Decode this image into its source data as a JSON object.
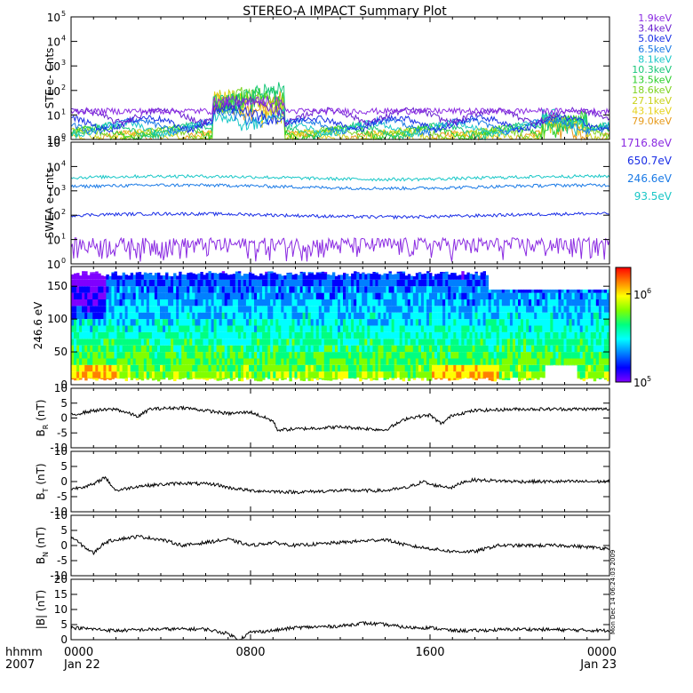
{
  "title": "STEREO-A IMPACT Summary Plot",
  "footer": {
    "time_label": "hhmm",
    "year_label": "2007",
    "x_ticks": [
      {
        "t": "0000",
        "d": "Jan 22",
        "hour": 0
      },
      {
        "t": "0800",
        "d": "",
        "hour": 8
      },
      {
        "t": "1600",
        "d": "",
        "hour": 16
      },
      {
        "t": "0000",
        "d": "Jan 23",
        "hour": 24
      }
    ],
    "stamp": "Mon Dec 14 06:24:03 2009"
  },
  "colors": {
    "ste": [
      "#8b2be2",
      "#6a1fd0",
      "#1a2ee6",
      "#1a7ae6",
      "#19c7c7",
      "#19c77a",
      "#2bcf2b",
      "#7ed321",
      "#c9d21a",
      "#e6d21a",
      "#e69a1a",
      "#e62b10"
    ],
    "swea": [
      "#8b2be2",
      "#1a2ee6",
      "#1a7ae6",
      "#19c7c7"
    ],
    "colorbar": [
      "#7f00ff",
      "#0000ff",
      "#0080ff",
      "#00ffff",
      "#00ff80",
      "#80ff00",
      "#ffff00",
      "#ff8000",
      "#ff0000"
    ]
  },
  "chart_data": [
    {
      "type": "line",
      "ylabel": "STE e- Cnts",
      "yscale": "log",
      "ylim": [
        1,
        100000
      ],
      "yticks": [
        {
          "b": "10",
          "e": "0",
          "v": 1
        },
        {
          "b": "10",
          "e": "1",
          "v": 10
        },
        {
          "b": "10",
          "e": "2",
          "v": 100
        },
        {
          "b": "10",
          "e": "3",
          "v": 1000
        },
        {
          "b": "10",
          "e": "4",
          "v": 10000
        },
        {
          "b": "10",
          "e": "5",
          "v": 100000
        }
      ],
      "series": [
        {
          "name": "1.9keV",
          "base": 14
        },
        {
          "name": "3.4keV",
          "base": 10
        },
        {
          "name": "5.0keV",
          "base": 5
        },
        {
          "name": "6.5keV",
          "base": 4
        },
        {
          "name": "8.1keV",
          "base": 3
        },
        {
          "name": "10.3keV",
          "base": 2.5
        },
        {
          "name": "13.5keV",
          "base": 2
        },
        {
          "name": "18.6keV",
          "base": 1.7
        },
        {
          "name": "27.1keV",
          "base": 1.5
        },
        {
          "name": "43.1keV",
          "base": 1.3
        },
        {
          "name": "79.0keV",
          "base": 1.2
        }
      ]
    },
    {
      "type": "line",
      "ylabel": "SWEA e- cnts",
      "yscale": "log",
      "ylim": [
        1,
        100000
      ],
      "yticks": [
        {
          "b": "10",
          "e": "0",
          "v": 1
        },
        {
          "b": "10",
          "e": "1",
          "v": 10
        },
        {
          "b": "10",
          "e": "2",
          "v": 100
        },
        {
          "b": "10",
          "e": "3",
          "v": 1000
        },
        {
          "b": "10",
          "e": "4",
          "v": 10000
        },
        {
          "b": "10",
          "e": "5",
          "v": 100000
        }
      ],
      "series": [
        {
          "name": "1716.8eV",
          "base": 3
        },
        {
          "name": "650.7eV",
          "base": 100
        },
        {
          "name": "246.6eV",
          "base": 1500
        },
        {
          "name": "93.5eV",
          "base": 3500
        }
      ]
    },
    {
      "type": "heatmap",
      "ylabel": "246.6 eV",
      "ylim": [
        0,
        180
      ],
      "yticks": [
        0,
        50,
        100,
        150
      ],
      "colorbar": {
        "scale": "log",
        "range": [
          100000,
          2000000
        ],
        "ticks": [
          {
            "b": "10",
            "e": "5",
            "v": 100000
          },
          {
            "b": "10",
            "e": "6",
            "v": 1000000
          }
        ]
      }
    },
    {
      "type": "line",
      "ylabel": "B",
      "ylabel_sub": "R",
      "ylabel_unit": "(nT)",
      "ylim": [
        -10,
        10
      ],
      "yticks": [
        -10,
        -5,
        0,
        5,
        10
      ],
      "keypoints": [
        [
          0,
          1
        ],
        [
          1,
          2.5
        ],
        [
          2,
          3
        ],
        [
          3,
          0.5
        ],
        [
          3.5,
          3
        ],
        [
          5,
          3.5
        ],
        [
          7,
          1.5
        ],
        [
          8,
          2
        ],
        [
          9,
          -1
        ],
        [
          9.2,
          -4
        ],
        [
          12,
          -3
        ],
        [
          14,
          -4
        ],
        [
          15,
          0
        ],
        [
          16,
          1
        ],
        [
          16.5,
          -2
        ],
        [
          17,
          1
        ],
        [
          18,
          2.5
        ],
        [
          20,
          3
        ],
        [
          24,
          3
        ]
      ]
    },
    {
      "type": "line",
      "ylabel": "B",
      "ylabel_sub": "T",
      "ylabel_unit": "(nT)",
      "ylim": [
        -10,
        10
      ],
      "yticks": [
        -10,
        -5,
        0,
        5,
        10
      ],
      "keypoints": [
        [
          0,
          -2.5
        ],
        [
          1,
          -1
        ],
        [
          1.5,
          1.5
        ],
        [
          2,
          -3
        ],
        [
          3,
          -1.5
        ],
        [
          5,
          -0.5
        ],
        [
          6.5,
          -1
        ],
        [
          7,
          -2
        ],
        [
          8,
          -3
        ],
        [
          10,
          -3.5
        ],
        [
          12,
          -3
        ],
        [
          14,
          -3
        ],
        [
          15,
          -2
        ],
        [
          15.7,
          0
        ],
        [
          16,
          -1
        ],
        [
          17,
          -2
        ],
        [
          17.5,
          0
        ],
        [
          18,
          0.5
        ],
        [
          20,
          0
        ],
        [
          24,
          0
        ]
      ]
    },
    {
      "type": "line",
      "ylabel": "B",
      "ylabel_sub": "N",
      "ylabel_unit": "(nT)",
      "ylim": [
        -10,
        10
      ],
      "yticks": [
        -10,
        -5,
        0,
        5,
        10
      ],
      "keypoints": [
        [
          0,
          3
        ],
        [
          0.5,
          0
        ],
        [
          1,
          -2.5
        ],
        [
          1.5,
          1
        ],
        [
          2,
          2
        ],
        [
          3,
          3
        ],
        [
          4,
          2
        ],
        [
          5,
          0
        ],
        [
          6,
          1
        ],
        [
          7,
          2
        ],
        [
          8,
          0
        ],
        [
          9,
          1
        ],
        [
          10,
          0
        ],
        [
          12,
          1
        ],
        [
          14,
          2
        ],
        [
          15,
          0
        ],
        [
          16,
          -1
        ],
        [
          17,
          -2
        ],
        [
          18,
          -2
        ],
        [
          19,
          0
        ],
        [
          20,
          0
        ],
        [
          22,
          0
        ],
        [
          24,
          -1
        ]
      ]
    },
    {
      "type": "line",
      "ylabel": "|B|",
      "ylabel_unit": "(nT)",
      "ylim": [
        0,
        20
      ],
      "yticks": [
        0,
        5,
        10,
        15,
        20
      ],
      "keypoints": [
        [
          0,
          4
        ],
        [
          1,
          3.5
        ],
        [
          2,
          3
        ],
        [
          4,
          3.5
        ],
        [
          6,
          3.5
        ],
        [
          7,
          2
        ],
        [
          7.5,
          0
        ],
        [
          8,
          2.5
        ],
        [
          9,
          3
        ],
        [
          10,
          4
        ],
        [
          12,
          4.5
        ],
        [
          13,
          5.5
        ],
        [
          14,
          5
        ],
        [
          15,
          4
        ],
        [
          16,
          4
        ],
        [
          17,
          3
        ],
        [
          18,
          3
        ],
        [
          20,
          3.5
        ],
        [
          24,
          3
        ]
      ]
    }
  ]
}
